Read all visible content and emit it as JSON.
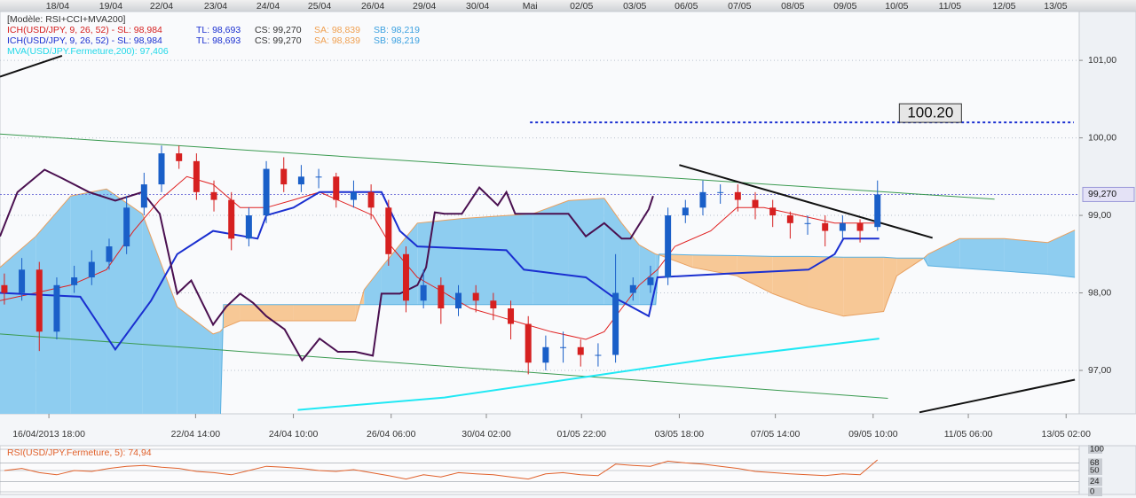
{
  "chart_data": {
    "type": "candlestick",
    "legend": [
      [
        {
          "text": "[Modèle: RSI+CCI+MVA200]",
          "color": "#333333"
        }
      ],
      [
        {
          "text": "ICH(USD/JPY, 9, 26, 52) -  SL: 98,984",
          "color": "#d62020"
        },
        {
          "text": "TL: 98,693",
          "color": "#1a2fd0"
        },
        {
          "text": "CS: 99,270",
          "color": "#333333"
        },
        {
          "text": "SA: 98,839",
          "color": "#f0a050"
        },
        {
          "text": "SB: 98,219",
          "color": "#3aa0e0"
        }
      ],
      [
        {
          "text": "ICH(USD/JPY, 9, 26, 52) -  SL: 98,984",
          "color": "#1a2fd0"
        },
        {
          "text": "TL: 98,693",
          "color": "#1a2fd0"
        },
        {
          "text": "CS: 99,270",
          "color": "#333333"
        },
        {
          "text": "SA: 98,839",
          "color": "#f0a050"
        },
        {
          "text": "SB: 98,219",
          "color": "#3aa0e0"
        }
      ],
      [
        {
          "text": "MVA(USD/JPY.Fermeture,200): 97,406",
          "color": "#20d8e8"
        }
      ]
    ],
    "xlim": [
      0,
      123.6
    ],
    "top_xticks": [
      {
        "value": 6.6,
        "label": "18/04"
      },
      {
        "value": 12.7,
        "label": "19/04"
      },
      {
        "value": 18.5,
        "label": "22/04"
      },
      {
        "value": 24.7,
        "label": "23/04"
      },
      {
        "value": 30.7,
        "label": "24/04"
      },
      {
        "value": 36.6,
        "label": "25/04"
      },
      {
        "value": 42.7,
        "label": "26/04"
      },
      {
        "value": 48.6,
        "label": "29/04"
      },
      {
        "value": 54.7,
        "label": "30/04"
      },
      {
        "value": 60.7,
        "label": "Mai"
      },
      {
        "value": 66.6,
        "label": "02/05"
      },
      {
        "value": 72.7,
        "label": "03/05"
      },
      {
        "value": 78.6,
        "label": "06/05"
      },
      {
        "value": 84.7,
        "label": "07/05"
      },
      {
        "value": 90.8,
        "label": "08/05"
      },
      {
        "value": 96.8,
        "label": "09/05"
      },
      {
        "value": 102.7,
        "label": "10/05"
      },
      {
        "value": 108.8,
        "label": "11/05"
      },
      {
        "value": 115,
        "label": "12/05"
      },
      {
        "value": 120.9,
        "label": "13/05"
      }
    ],
    "xticks": [
      {
        "value": 5.6,
        "label": "16/04/2013 18:00"
      },
      {
        "value": 22.4,
        "label": "22/04 14:00"
      },
      {
        "value": 33.6,
        "label": "24/04 10:00"
      },
      {
        "value": 44.8,
        "label": "26/04 06:00"
      },
      {
        "value": 55.7,
        "label": "30/04 02:00"
      },
      {
        "value": 66.6,
        "label": "01/05 22:00"
      },
      {
        "value": 77.8,
        "label": "03/05 18:00"
      },
      {
        "value": 88.8,
        "label": "07/05 14:00"
      },
      {
        "value": 100,
        "label": "09/05 10:00"
      },
      {
        "value": 110.9,
        "label": "11/05 06:00"
      },
      {
        "value": 122.1,
        "label": "13/05 02:00"
      }
    ],
    "ylim": [
      96.44,
      101.63
    ],
    "yticks": [
      {
        "value": 97,
        "label": "97,00"
      },
      {
        "value": 98,
        "label": "98,00"
      },
      {
        "value": 99,
        "label": "99,00"
      },
      {
        "value": 100,
        "label": "100,00"
      },
      {
        "value": 101,
        "label": "101,00"
      }
    ],
    "grid": true,
    "up_color": "#1a5fc8",
    "down_color": "#d62020",
    "x": [
      0.5,
      2.5,
      4.5,
      6.5,
      8.5,
      10.5,
      12.5,
      14.5,
      16.5,
      18.5,
      20.5,
      22.5,
      24.5,
      26.5,
      28.5,
      30.5,
      32.5,
      34.5,
      36.5,
      38.5,
      40.5,
      42.5,
      44.5,
      46.5,
      48.5,
      50.5,
      52.5,
      54.5,
      56.5,
      58.5,
      60.5,
      62.5,
      64.5,
      66.5,
      68.5,
      70.5,
      72.5,
      74.5,
      76.5,
      78.5,
      80.5,
      82.5,
      84.5,
      86.5,
      88.5,
      90.5,
      92.5,
      94.5,
      96.5,
      98.5,
      100.5
    ],
    "open": [
      98.1,
      98.0,
      98.3,
      97.5,
      98.1,
      98.2,
      98.4,
      98.6,
      99.1,
      99.4,
      99.8,
      99.7,
      99.3,
      99.2,
      98.7,
      99.0,
      99.6,
      99.4,
      99.5,
      99.5,
      99.2,
      99.3,
      99.1,
      98.5,
      97.9,
      98.1,
      97.8,
      98.0,
      97.9,
      97.8,
      97.6,
      97.1,
      97.3,
      97.3,
      97.2,
      97.2,
      98.0,
      98.1,
      98.2,
      99.0,
      99.1,
      99.3,
      99.3,
      99.2,
      99.1,
      99.0,
      98.9,
      98.9,
      98.8,
      98.9,
      98.85
    ],
    "high": [
      98.25,
      98.45,
      98.4,
      98.2,
      98.35,
      98.55,
      98.7,
      99.25,
      99.55,
      99.9,
      99.9,
      99.8,
      99.45,
      99.3,
      99.1,
      99.7,
      99.75,
      99.65,
      99.6,
      99.55,
      99.45,
      99.4,
      99.2,
      98.6,
      98.3,
      98.2,
      98.1,
      98.1,
      98.0,
      97.9,
      97.7,
      97.45,
      97.5,
      97.4,
      97.35,
      98.5,
      98.2,
      98.35,
      99.1,
      99.2,
      99.45,
      99.4,
      99.4,
      99.3,
      99.2,
      99.05,
      99.0,
      99.0,
      99.0,
      98.95,
      99.45
    ],
    "low": [
      97.85,
      97.9,
      97.25,
      97.4,
      98.0,
      98.1,
      98.3,
      98.5,
      99.0,
      99.3,
      99.6,
      99.2,
      99.05,
      98.55,
      98.6,
      98.9,
      99.3,
      99.3,
      99.35,
      99.1,
      99.1,
      98.95,
      98.35,
      97.75,
      97.8,
      97.6,
      97.7,
      97.75,
      97.65,
      97.4,
      96.95,
      97.0,
      97.1,
      97.05,
      97.05,
      97.1,
      97.9,
      98.0,
      98.1,
      98.9,
      99.0,
      99.15,
      99.05,
      98.95,
      98.85,
      98.7,
      98.75,
      98.6,
      98.7,
      98.65,
      98.8
    ],
    "close": [
      98.0,
      98.3,
      97.5,
      98.1,
      98.2,
      98.4,
      98.6,
      99.1,
      99.4,
      99.8,
      99.7,
      99.3,
      99.2,
      98.7,
      99.0,
      99.6,
      99.4,
      99.5,
      99.5,
      99.2,
      99.3,
      99.1,
      98.5,
      97.9,
      98.1,
      97.8,
      98.0,
      97.9,
      97.8,
      97.6,
      97.1,
      97.3,
      97.3,
      97.2,
      97.2,
      98.0,
      98.1,
      98.2,
      99.0,
      99.1,
      99.3,
      99.3,
      99.2,
      99.1,
      99.0,
      98.9,
      98.9,
      98.8,
      98.9,
      98.8,
      99.27
    ],
    "cloud": {
      "up_color": "#8ecdf0",
      "down_color": "#f7c896",
      "a_color": "#e8a060",
      "b_color": "#5ab0e0",
      "x": [
        0,
        4.1,
        8.1,
        12.2,
        16.3,
        20.3,
        24.4,
        25.2,
        25.6,
        27.5,
        33.6,
        40.7,
        41.7,
        43.7,
        47.8,
        52.9,
        61,
        65.1,
        69.2,
        71.2,
        73.2,
        75.1,
        75.5,
        79.3,
        84.4,
        88.5,
        92.6,
        96.6,
        101.2,
        102.7,
        105.8,
        106.3,
        109.9,
        115,
        120,
        123.1
      ],
      "span_a": [
        98.33,
        98.73,
        99.25,
        99.34,
        99.02,
        97.82,
        97.47,
        97.5,
        97.55,
        97.64,
        97.64,
        97.64,
        98.04,
        98.33,
        98.9,
        98.96,
        99.02,
        99.19,
        99.22,
        98.9,
        98.62,
        98.5,
        98.49,
        98.33,
        98.22,
        97.99,
        97.82,
        97.7,
        97.76,
        98.22,
        98.45,
        98.5,
        98.7,
        98.7,
        98.65,
        98.81
      ],
      "span_b": [
        96.2,
        96.2,
        96.2,
        96.2,
        96.2,
        96.2,
        96.2,
        96.2,
        97.85,
        97.85,
        97.85,
        97.85,
        97.85,
        97.85,
        97.85,
        97.85,
        97.85,
        97.85,
        97.85,
        97.85,
        97.85,
        97.85,
        98.5,
        98.49,
        98.48,
        98.47,
        98.47,
        98.46,
        98.46,
        98.45,
        98.45,
        98.35,
        98.32,
        98.28,
        98.24,
        98.2
      ]
    },
    "lines": [
      {
        "color": "#3a9a50",
        "style": "solid",
        "x": [
          0,
          113.9
        ],
        "values": [
          100.05,
          99.21
        ]
      },
      {
        "color": "#3a9a50",
        "style": "solid",
        "x": [
          0,
          101.7
        ],
        "values": [
          97.47,
          96.64
        ]
      },
      {
        "color": "#20e8f4",
        "style": "bold",
        "x": [
          34.1,
          50.9,
          66.1,
          81.4,
          100.7
        ],
        "values": [
          96.49,
          96.65,
          96.9,
          97.15,
          97.41
        ]
      },
      {
        "color": "#e02020",
        "style": "solid",
        "x": [
          0,
          4.1,
          8.1,
          12.2,
          15.3,
          18.3,
          21.4,
          24.4,
          27.5,
          30.5,
          33.6,
          36.6,
          40.7,
          42.7,
          44.8,
          47.8,
          50.9,
          53.9,
          57,
          60,
          63.1,
          67.1,
          69.2,
          71.2,
          73.2,
          75.3,
          77.3,
          81.4,
          84.4,
          87.5,
          91.6,
          95.6,
          99.7,
          100.7
        ],
        "values": [
          97.9,
          98.0,
          98.1,
          98.3,
          98.8,
          99.2,
          99.5,
          99.4,
          99.1,
          99.1,
          99.2,
          99.3,
          99.1,
          99.0,
          98.6,
          98.2,
          98.0,
          97.8,
          97.7,
          97.6,
          97.5,
          97.4,
          97.5,
          97.8,
          98.1,
          98.3,
          98.6,
          98.8,
          99.1,
          99.1,
          99.0,
          98.9,
          98.9,
          98.9
        ]
      },
      {
        "color": "#1a2fd0",
        "style": "bold",
        "x": [
          0,
          9.2,
          13.2,
          17.3,
          20.3,
          24.4,
          29.5,
          30.5,
          33.6,
          36.6,
          43.7,
          45.8,
          47.8,
          58,
          60,
          67.1,
          70.2,
          74.3,
          75.3,
          83.4,
          92.6,
          95.6,
          96.6,
          100.7
        ],
        "values": [
          98.0,
          97.95,
          97.27,
          97.9,
          98.5,
          98.8,
          98.7,
          99.0,
          99.1,
          99.3,
          99.3,
          98.8,
          98.6,
          98.55,
          98.3,
          98.2,
          97.95,
          97.7,
          98.2,
          98.25,
          98.3,
          98.5,
          98.7,
          98.7
        ]
      },
      {
        "color": "#4a1050",
        "style": "bold",
        "x": [
          0,
          2,
          5.1,
          7.1,
          10.2,
          13.2,
          16.3,
          18.3,
          20.3,
          21.9,
          24.4,
          25.9,
          27.5,
          29,
          30.5,
          32.6,
          34.6,
          36.6,
          38.7,
          40.7,
          42.7,
          43.7,
          45.8,
          47.8,
          48.8,
          49.8,
          50.9,
          52.9,
          54.9,
          57,
          58,
          59,
          61,
          63.1,
          65.1,
          67.1,
          69.2,
          71.2,
          72.2,
          74.3,
          74.8
        ],
        "values": [
          98.73,
          99.3,
          99.59,
          99.48,
          99.3,
          99.19,
          99.3,
          99.02,
          97.99,
          98.16,
          97.59,
          97.82,
          97.99,
          97.87,
          97.7,
          97.53,
          97.13,
          97.41,
          97.24,
          97.24,
          97.19,
          97.99,
          97.99,
          98.1,
          98.33,
          99.04,
          99.02,
          99.02,
          99.36,
          99.13,
          99.3,
          99.02,
          99.02,
          99.02,
          99.02,
          98.73,
          98.9,
          98.7,
          98.7,
          99.08,
          99.25
        ]
      },
      {
        "color": "#111111",
        "style": "bold",
        "x": [
          77.8,
          106.8
        ],
        "values": [
          99.65,
          98.71
        ]
      },
      {
        "color": "#111111",
        "style": "bold",
        "x": [
          0,
          7.1
        ],
        "values": [
          100.79,
          101.06
        ]
      },
      {
        "color": "#111111",
        "style": "bold",
        "x": [
          105.3,
          123.1
        ],
        "values": [
          96.46,
          96.88
        ]
      }
    ],
    "level": {
      "value": 100.2,
      "label": "100.20",
      "from": 60.7,
      "color": "#1a2fd0"
    },
    "last_price": {
      "value": 99.27,
      "label": "99,270",
      "color": "#6a6ad8"
    },
    "rsi": {
      "title": "RSI(USD/JPY.Fermeture, 5): 74,94",
      "color": "#e0602a",
      "ylim": [
        0,
        100
      ],
      "yticks": [
        0,
        24,
        50,
        68,
        100
      ],
      "values": [
        50,
        55,
        45,
        40,
        50,
        48,
        55,
        60,
        62,
        58,
        55,
        48,
        45,
        40,
        50,
        60,
        58,
        55,
        50,
        48,
        52,
        45,
        38,
        30,
        40,
        35,
        45,
        42,
        40,
        35,
        30,
        42,
        45,
        40,
        38,
        65,
        62,
        60,
        72,
        68,
        65,
        60,
        55,
        48,
        45,
        42,
        40,
        38,
        42,
        40,
        74.94
      ]
    }
  }
}
